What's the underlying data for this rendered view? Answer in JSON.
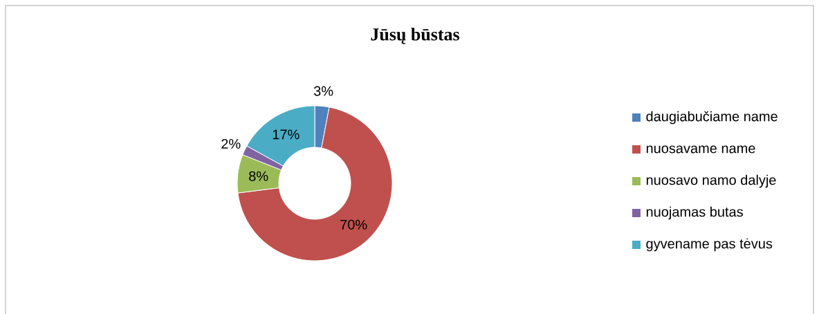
{
  "chart_data": {
    "type": "donut",
    "title": "Jūsų būstas",
    "categories": [
      "daugiabučiame name",
      "nuosavame name",
      "nuosavo namo dalyje",
      "nuojamas butas",
      "gyvename pas tėvus"
    ],
    "values": [
      3,
      70,
      8,
      2,
      17
    ],
    "value_labels": [
      "3%",
      "70%",
      "8%",
      "2%",
      "17%"
    ],
    "colors": [
      "#4f81bd",
      "#c0504d",
      "#9bbb59",
      "#8064a2",
      "#4bacc6"
    ],
    "legend": "right"
  }
}
